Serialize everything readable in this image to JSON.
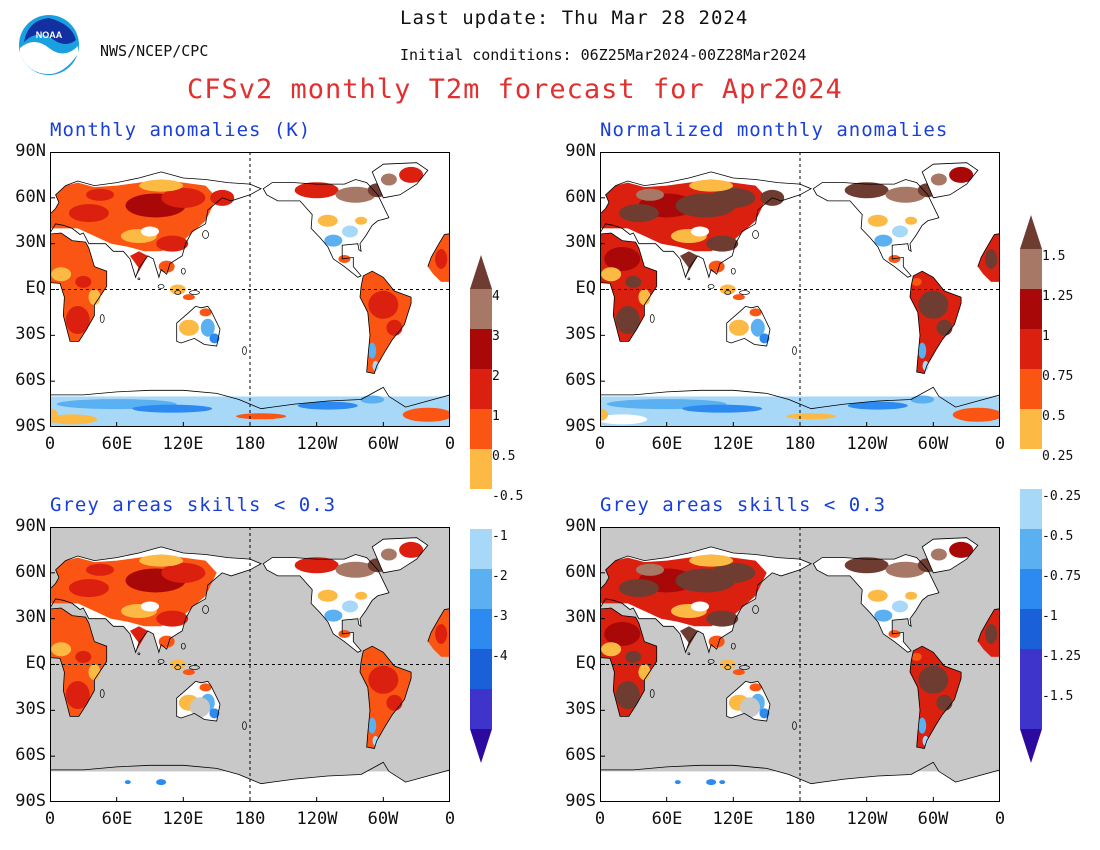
{
  "header": {
    "org": "NWS/NCEP/CPC",
    "last_update": "Last update: Thu Mar 28 2024",
    "initial_conditions": "Initial conditions: 06Z25Mar2024-00Z28Mar2024",
    "title": "CFSv2 monthly T2m forecast for Apr2024"
  },
  "colors": {
    "title": "#e03030",
    "panel_title": "#1a3fd8",
    "grey_mask": "#c8c8c8",
    "palette": [
      "#2c0aa0",
      "#3e34cc",
      "#1a60d8",
      "#2c8af0",
      "#5ab0f0",
      "#a8d8f8",
      "#ffffff",
      "#fcb944",
      "#fa5512",
      "#dc2010",
      "#a80808",
      "#a87866",
      "#6e3c30"
    ]
  },
  "panels": [
    {
      "title": "Monthly anomalies (K)",
      "masked": false,
      "style": "abs"
    },
    {
      "title": "Normalized monthly anomalies",
      "masked": false,
      "style": "norm"
    },
    {
      "title": "Grey areas skills < 0.3",
      "masked": true,
      "style": "abs"
    },
    {
      "title": "Grey areas skills < 0.3",
      "masked": true,
      "style": "norm"
    }
  ],
  "axes": {
    "lat_ticks": [
      "90N",
      "60N",
      "30N",
      "EQ",
      "30S",
      "60S",
      "90S"
    ],
    "lon_ticks": [
      "0",
      "60E",
      "120E",
      "180",
      "120W",
      "60W",
      "0"
    ]
  },
  "colorbars": {
    "absolute": [
      "4",
      "3",
      "2",
      "1",
      "0.5",
      "-0.5",
      "-1",
      "-2",
      "-3",
      "-4"
    ],
    "normalized": [
      "1.5",
      "1.25",
      "1",
      "0.75",
      "0.5",
      "0.25",
      "-0.25",
      "-0.5",
      "-0.75",
      "-1",
      "-1.25",
      "-1.5"
    ]
  }
}
